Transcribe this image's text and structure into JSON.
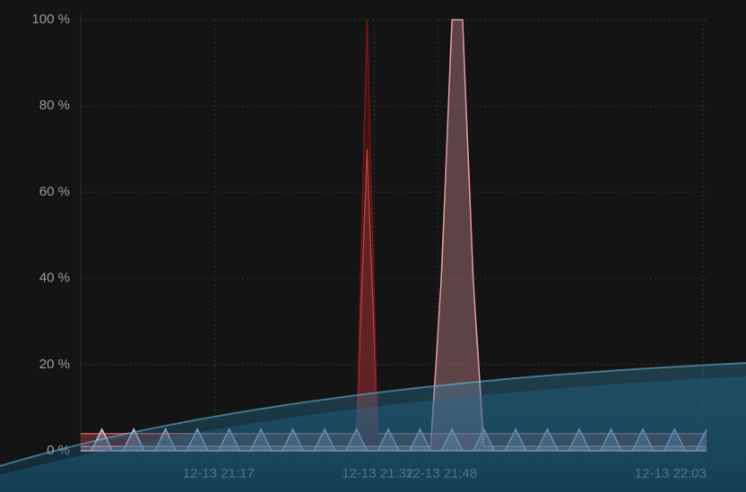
{
  "chart_data": {
    "type": "area",
    "categories": [
      null,
      null,
      null,
      null,
      null,
      null,
      null,
      null,
      null,
      null,
      null,
      null,
      null,
      "12-13 21:17",
      null,
      null,
      null,
      null,
      null,
      null,
      null,
      null,
      null,
      null,
      null,
      null,
      null,
      null,
      "12-13 21:32",
      null,
      null,
      null,
      null,
      null,
      "12-13 21:48",
      null,
      null,
      null,
      null,
      null,
      null,
      null,
      null,
      null,
      null,
      null,
      null,
      null,
      null,
      null,
      null,
      null,
      null,
      null,
      null,
      null,
      null,
      null,
      null,
      "12-13 22:03"
    ],
    "series": [
      {
        "color": "#c25a5e",
        "values": [
          4,
          4,
          4,
          4,
          4,
          4,
          4,
          4,
          4,
          4,
          4,
          4,
          4,
          4,
          4,
          4,
          4,
          4,
          4,
          4,
          4,
          4,
          4,
          4,
          4,
          4,
          4,
          70,
          4,
          4,
          4,
          4,
          4,
          4,
          4,
          4,
          4,
          4,
          4,
          4,
          4,
          4,
          4,
          4,
          4,
          4,
          4,
          4,
          4,
          4,
          4,
          4,
          4,
          4,
          4,
          4,
          4,
          4,
          4,
          4
        ]
      },
      {
        "color": "#7a1414",
        "values": [
          2,
          2,
          2,
          2,
          2,
          2,
          2,
          2,
          2,
          2,
          2,
          2,
          2,
          2,
          2,
          2,
          2,
          2,
          2,
          2,
          2,
          2,
          2,
          2,
          2,
          2,
          2,
          100,
          2,
          2,
          2,
          2,
          2,
          2,
          2,
          2,
          2,
          2,
          2,
          2,
          2,
          2,
          2,
          2,
          2,
          2,
          2,
          2,
          2,
          2,
          2,
          2,
          2,
          2,
          2,
          2,
          2,
          2,
          2,
          2
        ]
      },
      {
        "color": "#e59aa2",
        "values": [
          1,
          1,
          1,
          1,
          1,
          1,
          1,
          1,
          1,
          1,
          1,
          1,
          1,
          1,
          1,
          1,
          1,
          1,
          1,
          1,
          1,
          1,
          1,
          1,
          1,
          1,
          1,
          1,
          1,
          1,
          1,
          1,
          1,
          1,
          40,
          100,
          100,
          40,
          1,
          1,
          1,
          1,
          1,
          1,
          1,
          1,
          1,
          1,
          1,
          1,
          1,
          1,
          1,
          1,
          1,
          1,
          1,
          1,
          1,
          1
        ]
      },
      {
        "color": "#c9c3e6",
        "values": [
          0,
          0,
          5,
          0,
          0,
          5,
          0,
          0,
          5,
          0,
          0,
          5,
          0,
          0,
          5,
          0,
          0,
          5,
          0,
          0,
          5,
          0,
          0,
          5,
          0,
          0,
          5,
          0,
          0,
          5,
          0,
          0,
          5,
          0,
          0,
          5,
          0,
          0,
          5,
          0,
          0,
          5,
          0,
          0,
          5,
          0,
          0,
          5,
          0,
          0,
          5,
          0,
          0,
          5,
          0,
          0,
          5,
          0,
          0,
          5
        ]
      }
    ],
    "ylim": [
      0,
      100
    ],
    "yticks": [
      {
        "value": 0,
        "label": "0 %"
      },
      {
        "value": 20,
        "label": "20 %"
      },
      {
        "value": 40,
        "label": "40 %"
      },
      {
        "value": 60,
        "label": "60 %"
      },
      {
        "value": 80,
        "label": "80 %"
      },
      {
        "value": 100,
        "label": "100 %"
      }
    ],
    "grid": true
  }
}
